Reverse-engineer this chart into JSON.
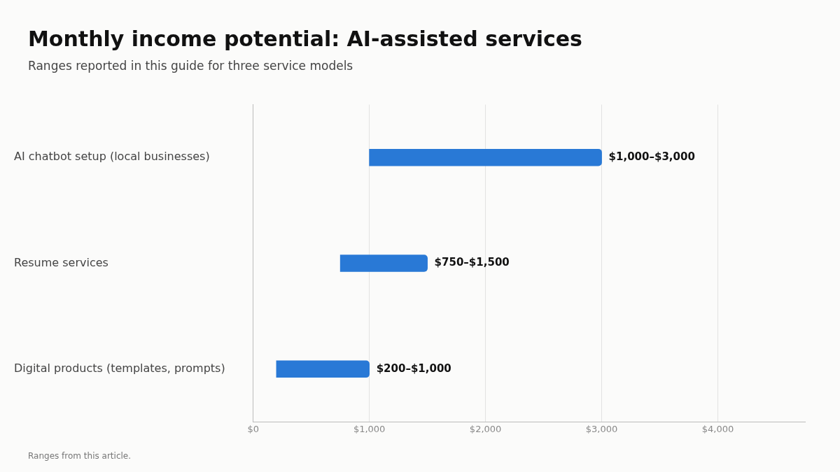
{
  "chart_data": {
    "type": "bar",
    "orientation": "horizontal",
    "title": "Monthly income potential: AI-assisted services",
    "subtitle": "Ranges reported in this guide for three service models",
    "categories": [
      "AI chatbot setup (local businesses)",
      "Resume services",
      "Digital products (templates, prompts)"
    ],
    "values": [
      2000,
      750,
      800
    ],
    "base": [
      1000,
      750,
      200
    ],
    "value_labels": [
      "$1,000–$3,000",
      "$750–$1,500",
      "$200–$1,000"
    ],
    "color": "#2979d6",
    "xlim": [
      0,
      4750
    ],
    "xticks": [
      {
        "value": 0,
        "label": "$0"
      },
      {
        "value": 1000,
        "label": "$1,000"
      },
      {
        "value": 2000,
        "label": "$2,000"
      },
      {
        "value": 3000,
        "label": "$3,000"
      },
      {
        "value": 4000,
        "label": "$4,000"
      }
    ],
    "grid": "x",
    "legend": false,
    "annotations": [
      "Ranges from this article."
    ]
  }
}
